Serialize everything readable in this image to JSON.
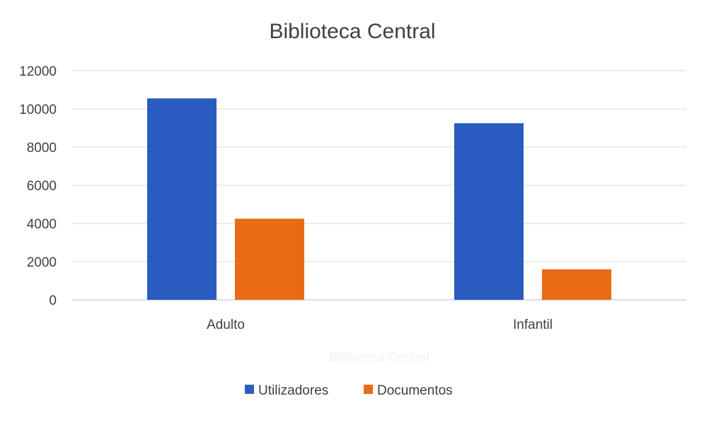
{
  "chart_data": {
    "type": "bar",
    "title": "Biblioteca Central",
    "categories": [
      "Adulto",
      "Infantil"
    ],
    "series": [
      {
        "name": "Utilizadores",
        "color": "#2a5cbf",
        "values": [
          10550,
          9250
        ]
      },
      {
        "name": "Documentos",
        "color": "#e96b16",
        "values": [
          4250,
          1600
        ]
      }
    ],
    "ylim": [
      0,
      12000
    ],
    "yticks": [
      0,
      2000,
      4000,
      6000,
      8000,
      10000,
      12000
    ],
    "grid": true,
    "legend": "bottom",
    "faint_caption": "Biblioteca Central"
  },
  "colors": {
    "gridline": "#d9d9d9",
    "axis": "#bfbfbf",
    "text": "#404040"
  }
}
